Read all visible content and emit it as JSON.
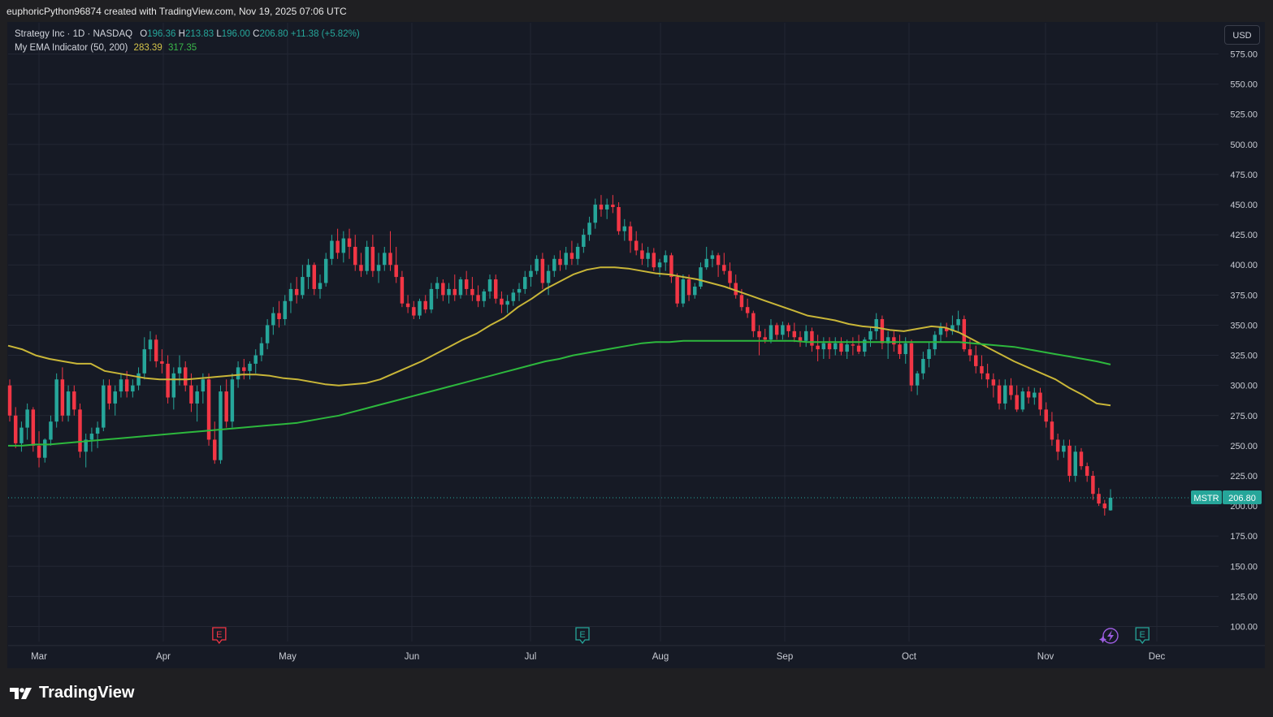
{
  "header": {
    "attribution": "euphoricPython96874 created with TradingView.com, Nov 19, 2025 07:06 UTC"
  },
  "legend": {
    "symbol": "Strategy Inc · 1D · NASDAQ",
    "o_label": "O",
    "o": "196.36",
    "h_label": "H",
    "h": "213.83",
    "l_label": "L",
    "l": "196.00",
    "c_label": "C",
    "c": "206.80",
    "change": "+11.38 (+5.82%)",
    "indicator": "My EMA Indicator (50, 200)",
    "ema50": "283.39",
    "ema200": "317.35"
  },
  "currency_button": "USD",
  "price_tag": {
    "ticker": "MSTR",
    "value": "206.80"
  },
  "brand": {
    "name": "TradingView"
  },
  "events": [
    {
      "letter": "E",
      "month_pos": 1.45,
      "color": "#f23645"
    },
    {
      "letter": "E",
      "month_pos": 4.4,
      "color": "#26a69a"
    },
    {
      "letter": "E",
      "month_pos": 8.87,
      "color": "#26a69a"
    }
  ],
  "flash_icon": "lightning-icon",
  "colors": {
    "up": "#26a69a",
    "down": "#f23645",
    "ema50": "#c9b638",
    "ema200": "#2db83d",
    "grid": "#232734",
    "background": "#161a25"
  },
  "chart_data": {
    "type": "candlestick",
    "title": "Strategy Inc · 1D · NASDAQ",
    "ylim": [
      100,
      575
    ],
    "y_ticks": [
      "575.00",
      "550.00",
      "525.00",
      "500.00",
      "475.00",
      "450.00",
      "425.00",
      "400.00",
      "375.00",
      "350.00",
      "325.00",
      "300.00",
      "275.00",
      "250.00",
      "225.00",
      "200.00",
      "175.00",
      "150.00",
      "125.00",
      "100.00"
    ],
    "x_ticks": [
      "Mar",
      "Apr",
      "May",
      "Jun",
      "Jul",
      "Aug",
      "Sep",
      "Oct",
      "Nov",
      "Dec"
    ],
    "candles": [
      [
        300,
        305,
        270,
        275
      ],
      [
        275,
        282,
        248,
        252
      ],
      [
        252,
        270,
        245,
        265
      ],
      [
        265,
        285,
        255,
        280
      ],
      [
        280,
        282,
        245,
        250
      ],
      [
        250,
        262,
        232,
        240
      ],
      [
        240,
        256,
        236,
        255
      ],
      [
        255,
        275,
        250,
        270
      ],
      [
        270,
        310,
        265,
        305
      ],
      [
        305,
        315,
        270,
        275
      ],
      [
        275,
        300,
        270,
        295
      ],
      [
        295,
        300,
        275,
        280
      ],
      [
        280,
        285,
        240,
        245
      ],
      [
        245,
        260,
        232,
        255
      ],
      [
        255,
        265,
        245,
        260
      ],
      [
        260,
        270,
        248,
        265
      ],
      [
        265,
        305,
        262,
        300
      ],
      [
        300,
        305,
        280,
        285
      ],
      [
        285,
        300,
        275,
        295
      ],
      [
        295,
        310,
        290,
        305
      ],
      [
        305,
        312,
        290,
        295
      ],
      [
        295,
        305,
        290,
        300
      ],
      [
        300,
        315,
        296,
        310
      ],
      [
        310,
        340,
        305,
        330
      ],
      [
        330,
        345,
        320,
        338
      ],
      [
        338,
        342,
        315,
        320
      ],
      [
        320,
        330,
        310,
        318
      ],
      [
        318,
        325,
        285,
        290
      ],
      [
        290,
        315,
        280,
        310
      ],
      [
        310,
        325,
        300,
        315
      ],
      [
        315,
        320,
        295,
        300
      ],
      [
        300,
        310,
        278,
        285
      ],
      [
        285,
        300,
        270,
        295
      ],
      [
        295,
        310,
        285,
        305
      ],
      [
        305,
        310,
        250,
        255
      ],
      [
        255,
        270,
        235,
        238
      ],
      [
        238,
        300,
        235,
        295
      ],
      [
        295,
        305,
        265,
        270
      ],
      [
        270,
        310,
        265,
        305
      ],
      [
        305,
        320,
        298,
        315
      ],
      [
        315,
        322,
        305,
        312
      ],
      [
        312,
        320,
        305,
        318
      ],
      [
        318,
        330,
        310,
        325
      ],
      [
        325,
        340,
        320,
        335
      ],
      [
        335,
        355,
        330,
        350
      ],
      [
        350,
        365,
        342,
        360
      ],
      [
        360,
        370,
        348,
        355
      ],
      [
        355,
        375,
        350,
        370
      ],
      [
        370,
        385,
        360,
        380
      ],
      [
        380,
        390,
        368,
        375
      ],
      [
        375,
        400,
        372,
        390
      ],
      [
        390,
        405,
        380,
        400
      ],
      [
        400,
        402,
        375,
        380
      ],
      [
        380,
        392,
        372,
        385
      ],
      [
        385,
        410,
        382,
        405
      ],
      [
        405,
        425,
        400,
        420
      ],
      [
        420,
        430,
        405,
        410
      ],
      [
        410,
        428,
        402,
        422
      ],
      [
        422,
        430,
        405,
        415
      ],
      [
        415,
        425,
        395,
        400
      ],
      [
        400,
        410,
        390,
        395
      ],
      [
        395,
        420,
        392,
        415
      ],
      [
        415,
        425,
        390,
        395
      ],
      [
        395,
        410,
        385,
        400
      ],
      [
        400,
        415,
        395,
        410
      ],
      [
        410,
        428,
        395,
        400
      ],
      [
        400,
        415,
        385,
        390
      ],
      [
        390,
        395,
        365,
        368
      ],
      [
        368,
        375,
        360,
        365
      ],
      [
        365,
        370,
        355,
        358
      ],
      [
        358,
        372,
        355,
        370
      ],
      [
        370,
        375,
        360,
        363
      ],
      [
        363,
        385,
        360,
        380
      ],
      [
        380,
        390,
        372,
        385
      ],
      [
        385,
        388,
        370,
        375
      ],
      [
        375,
        385,
        368,
        380
      ],
      [
        380,
        392,
        370,
        375
      ],
      [
        375,
        390,
        372,
        388
      ],
      [
        388,
        395,
        375,
        380
      ],
      [
        380,
        390,
        370,
        375
      ],
      [
        375,
        383,
        365,
        370
      ],
      [
        370,
        380,
        365,
        378
      ],
      [
        378,
        392,
        372,
        388
      ],
      [
        388,
        392,
        368,
        372
      ],
      [
        372,
        378,
        360,
        367
      ],
      [
        367,
        375,
        360,
        370
      ],
      [
        370,
        380,
        366,
        377
      ],
      [
        377,
        385,
        370,
        380
      ],
      [
        380,
        395,
        376,
        390
      ],
      [
        390,
        400,
        382,
        395
      ],
      [
        395,
        408,
        392,
        405
      ],
      [
        405,
        410,
        380,
        385
      ],
      [
        385,
        400,
        375,
        395
      ],
      [
        395,
        408,
        390,
        405
      ],
      [
        405,
        412,
        395,
        400
      ],
      [
        400,
        415,
        396,
        410
      ],
      [
        410,
        420,
        400,
        405
      ],
      [
        405,
        418,
        400,
        415
      ],
      [
        415,
        430,
        410,
        425
      ],
      [
        425,
        440,
        420,
        435
      ],
      [
        435,
        455,
        430,
        450
      ],
      [
        450,
        458,
        440,
        446
      ],
      [
        446,
        455,
        438,
        450
      ],
      [
        450,
        458,
        443,
        448
      ],
      [
        448,
        452,
        425,
        428
      ],
      [
        428,
        438,
        420,
        432
      ],
      [
        432,
        436,
        410,
        420
      ],
      [
        420,
        428,
        408,
        412
      ],
      [
        412,
        418,
        400,
        405
      ],
      [
        405,
        415,
        398,
        410
      ],
      [
        410,
        414,
        395,
        398
      ],
      [
        398,
        405,
        390,
        402
      ],
      [
        402,
        412,
        395,
        408
      ],
      [
        408,
        410,
        385,
        390
      ],
      [
        390,
        393,
        365,
        368
      ],
      [
        368,
        392,
        365,
        388
      ],
      [
        388,
        392,
        370,
        375
      ],
      [
        375,
        385,
        372,
        382
      ],
      [
        382,
        402,
        380,
        398
      ],
      [
        398,
        415,
        396,
        405
      ],
      [
        405,
        412,
        398,
        408
      ],
      [
        408,
        410,
        390,
        400
      ],
      [
        400,
        410,
        392,
        395
      ],
      [
        395,
        402,
        380,
        385
      ],
      [
        385,
        392,
        372,
        375
      ],
      [
        375,
        380,
        362,
        365
      ],
      [
        365,
        372,
        356,
        360
      ],
      [
        360,
        362,
        340,
        345
      ],
      [
        345,
        350,
        325,
        340
      ],
      [
        340,
        347,
        335,
        338
      ],
      [
        338,
        355,
        335,
        350
      ],
      [
        350,
        352,
        338,
        342
      ],
      [
        342,
        353,
        338,
        350
      ],
      [
        350,
        352,
        340,
        345
      ],
      [
        345,
        352,
        336,
        340
      ],
      [
        340,
        345,
        332,
        337
      ],
      [
        337,
        350,
        332,
        345
      ],
      [
        345,
        348,
        328,
        333
      ],
      [
        333,
        342,
        320,
        330
      ],
      [
        330,
        340,
        322,
        335
      ],
      [
        335,
        340,
        322,
        330
      ],
      [
        330,
        340,
        325,
        335
      ],
      [
        335,
        340,
        325,
        328
      ],
      [
        328,
        338,
        322,
        334
      ],
      [
        334,
        340,
        325,
        333
      ],
      [
        333,
        342,
        326,
        328
      ],
      [
        328,
        340,
        324,
        338
      ],
      [
        338,
        348,
        332,
        345
      ],
      [
        345,
        360,
        338,
        355
      ],
      [
        355,
        358,
        330,
        335
      ],
      [
        335,
        345,
        322,
        340
      ],
      [
        340,
        345,
        328,
        334
      ],
      [
        334,
        342,
        322,
        326
      ],
      [
        326,
        340,
        318,
        335
      ],
      [
        335,
        338,
        295,
        300
      ],
      [
        300,
        312,
        292,
        310
      ],
      [
        310,
        328,
        305,
        322
      ],
      [
        322,
        336,
        315,
        330
      ],
      [
        330,
        345,
        325,
        342
      ],
      [
        342,
        352,
        336,
        348
      ],
      [
        348,
        352,
        340,
        345
      ],
      [
        345,
        358,
        342,
        350
      ],
      [
        350,
        362,
        345,
        355
      ],
      [
        355,
        358,
        328,
        330
      ],
      [
        330,
        338,
        320,
        325
      ],
      [
        325,
        333,
        310,
        316
      ],
      [
        316,
        325,
        305,
        310
      ],
      [
        310,
        318,
        298,
        305
      ],
      [
        305,
        310,
        290,
        300
      ],
      [
        300,
        305,
        280,
        285
      ],
      [
        285,
        305,
        280,
        300
      ],
      [
        300,
        306,
        288,
        292
      ],
      [
        292,
        300,
        278,
        280
      ],
      [
        280,
        298,
        278,
        295
      ],
      [
        295,
        299,
        285,
        290
      ],
      [
        290,
        298,
        284,
        294
      ],
      [
        294,
        298,
        275,
        280
      ],
      [
        280,
        286,
        265,
        270
      ],
      [
        270,
        278,
        250,
        255
      ],
      [
        255,
        260,
        238,
        245
      ],
      [
        245,
        255,
        240,
        250
      ],
      [
        250,
        255,
        220,
        225
      ],
      [
        225,
        250,
        220,
        245
      ],
      [
        245,
        248,
        230,
        233
      ],
      [
        233,
        236,
        220,
        225
      ],
      [
        225,
        229,
        205,
        210
      ],
      [
        210,
        215,
        200,
        202
      ],
      [
        202,
        205,
        192,
        198
      ],
      [
        196.36,
        213.83,
        196,
        206.8
      ]
    ],
    "series": [
      {
        "name": "EMA 50",
        "values": [
          333,
          330,
          325,
          322,
          320,
          318,
          318,
          312,
          310,
          308,
          306,
          305,
          305,
          305,
          306,
          307,
          308,
          309,
          309,
          308,
          306,
          305,
          303,
          301,
          300,
          301,
          302,
          305,
          310,
          315,
          320,
          326,
          332,
          338,
          343,
          350,
          356,
          365,
          372,
          380,
          386,
          392,
          396,
          398,
          398,
          397,
          395,
          393,
          392,
          390,
          388,
          385,
          382,
          378,
          374,
          370,
          366,
          362,
          358,
          356,
          354,
          351,
          349,
          348,
          346,
          345,
          347,
          349,
          348,
          344,
          338,
          332,
          326,
          320,
          315,
          310,
          305,
          298,
          292,
          285,
          283.39
        ]
      },
      {
        "name": "EMA 200",
        "values": [
          250,
          250,
          251,
          251,
          252,
          253,
          254,
          255,
          256,
          257,
          258,
          259,
          260,
          261,
          262,
          263,
          264,
          265,
          266,
          267,
          268,
          269,
          271,
          273,
          275,
          278,
          281,
          284,
          287,
          290,
          293,
          296,
          299,
          302,
          305,
          308,
          311,
          314,
          317,
          320,
          322,
          325,
          327,
          329,
          331,
          333,
          335,
          336,
          336,
          337,
          337,
          337,
          337,
          337,
          337,
          337,
          337,
          337,
          336,
          336,
          336,
          336,
          336,
          336,
          336,
          336,
          336,
          336,
          336,
          336,
          335,
          334,
          333,
          332,
          330,
          328,
          326,
          324,
          322,
          320,
          317.35
        ]
      }
    ]
  }
}
